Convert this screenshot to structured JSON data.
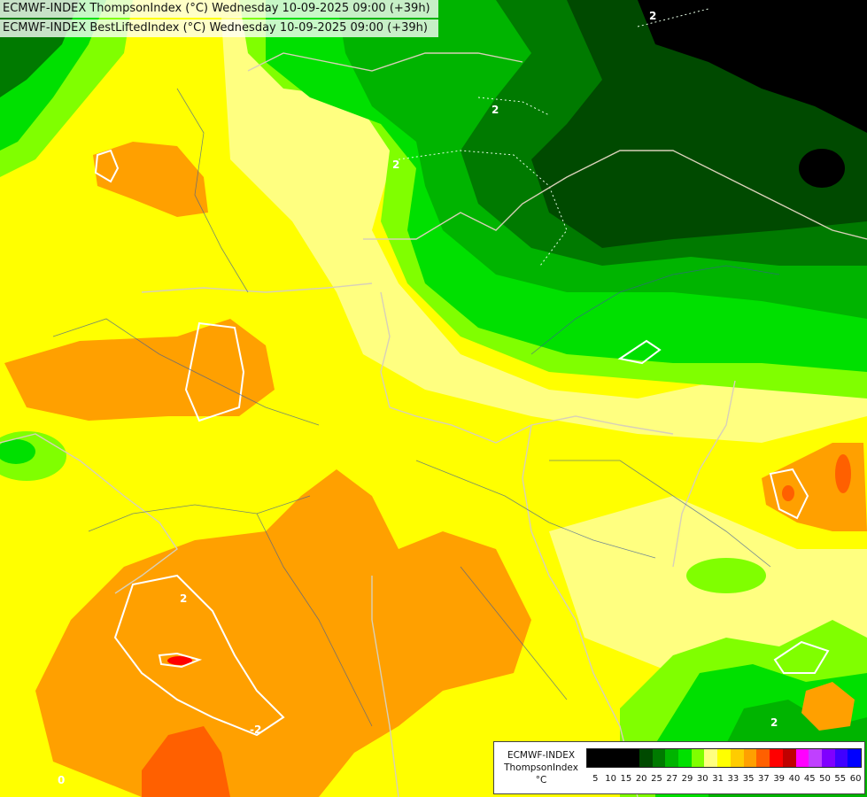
{
  "header": {
    "line1": "ECMWF-INDEX ThompsonIndex (°C) Wednesday 10-09-2025 09:00 (+39h)",
    "line2": "ECMWF-INDEX BestLiftedIndex (°C) Wednesday 10-09-2025 09:00 (+39h)"
  },
  "contour_labels": [
    "2",
    "2",
    "2",
    "2",
    "-2",
    "0",
    "2"
  ],
  "legend": {
    "model": "ECMWF-INDEX",
    "parameter": "ThompsonIndex",
    "unit": "°C",
    "ticks": [
      "5",
      "10",
      "15",
      "20",
      "25",
      "27",
      "29",
      "30",
      "31",
      "33",
      "35",
      "37",
      "39",
      "40",
      "45",
      "50",
      "55",
      "60"
    ],
    "colors": [
      "#000000",
      "#000000",
      "#000000",
      "#000000",
      "#004a00",
      "#007a00",
      "#00b400",
      "#00e000",
      "#80ff00",
      "#ffff80",
      "#ffff00",
      "#ffcc00",
      "#ffa000",
      "#ff6000",
      "#ff0000",
      "#c00000",
      "#ff00ff",
      "#c040ff",
      "#8000ff",
      "#4000ff",
      "#0000ff"
    ]
  },
  "colors": {
    "yellow": "#ffff00",
    "pale": "#ffff80",
    "orange": "#ffa000",
    "darkorange": "#ff6000",
    "lime": "#80ff00",
    "green": "#00e000",
    "mid": "#00b400",
    "dark": "#007a00",
    "darker": "#004a00",
    "black": "#000000",
    "red": "#ff0000"
  }
}
